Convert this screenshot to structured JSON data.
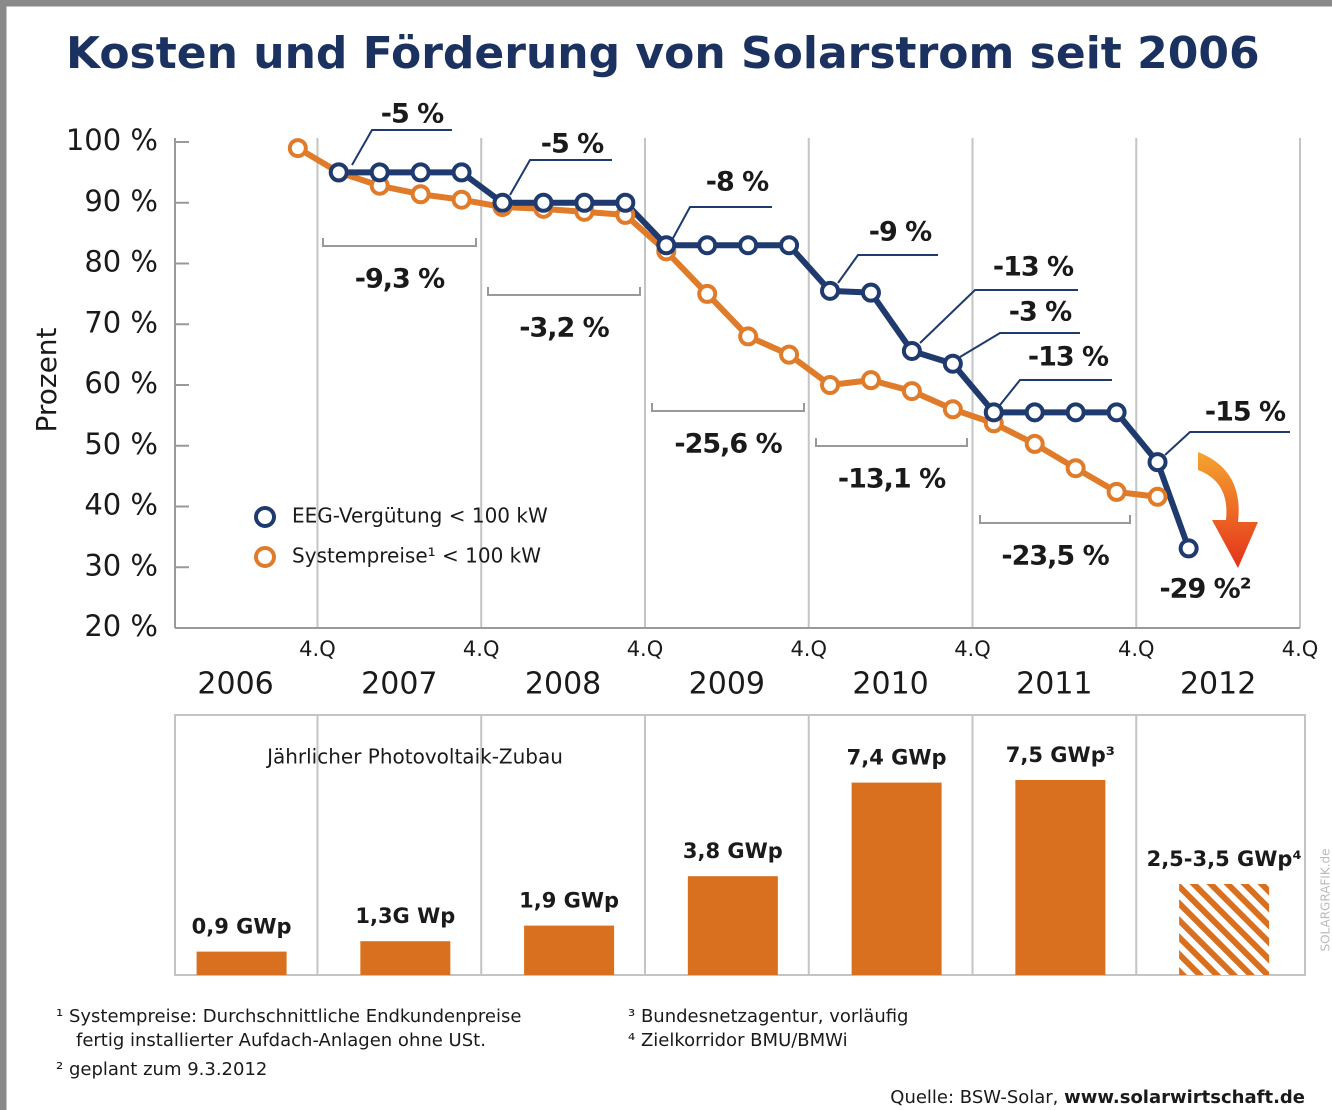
{
  "chart_data": [
    {
      "type": "line",
      "title": "Kosten und Förderung von Solarstrom seit 2006",
      "ylabel": "Prozent",
      "x": [
        2006.88,
        2007.13,
        2007.38,
        2007.63,
        2007.88,
        2008.13,
        2008.38,
        2008.63,
        2008.88,
        2009.13,
        2009.38,
        2009.63,
        2009.88,
        2010.13,
        2010.38,
        2010.63,
        2010.88,
        2011.13,
        2011.38,
        2011.63,
        2011.88,
        2012.13,
        2012.32
      ],
      "xlim": [
        2006.13,
        2013
      ],
      "xticks": [
        {
          "value": 2007,
          "label": "4.Q"
        },
        {
          "value": 2008,
          "label": "4.Q"
        },
        {
          "value": 2009,
          "label": "4.Q"
        },
        {
          "value": 2010,
          "label": "4.Q"
        },
        {
          "value": 2011,
          "label": "4.Q"
        },
        {
          "value": 2012,
          "label": "4.Q"
        },
        {
          "value": 2013,
          "label": "4.Q"
        }
      ],
      "ylim": [
        20,
        100
      ],
      "yticks": [
        {
          "value": 20,
          "label": "20 %"
        },
        {
          "value": 30,
          "label": "30 %"
        },
        {
          "value": 40,
          "label": "40 %"
        },
        {
          "value": 50,
          "label": "50 %"
        },
        {
          "value": 60,
          "label": "60 %"
        },
        {
          "value": 70,
          "label": "70 %"
        },
        {
          "value": 80,
          "label": "80 %"
        },
        {
          "value": 90,
          "label": "90 %"
        },
        {
          "value": 100,
          "label": "100 %"
        }
      ],
      "series": [
        {
          "name": "Systempreise¹ < 100 kW",
          "color": "#e07b2a",
          "values": [
            99,
            95,
            92.8,
            91.4,
            90.5,
            89.3,
            89,
            88.5,
            88,
            82,
            75,
            68,
            65,
            60,
            60.8,
            59,
            56,
            53.7,
            50.3,
            46.3,
            42.4,
            41.6,
            null
          ]
        },
        {
          "name": "EEG-Vergütung < 100 kW",
          "color": "#1e3a6e",
          "values": [
            null,
            95,
            95,
            95,
            95,
            90,
            90,
            90,
            90,
            83,
            83,
            83,
            83,
            75.5,
            75.2,
            65.6,
            63.5,
            55.5,
            55.5,
            55.5,
            55.5,
            47.3,
            33.1
          ]
        }
      ],
      "change_labels": [
        "-5 %",
        "-5 %",
        "-8 %",
        "-9 %",
        "-13 %",
        "-3 %",
        "-13 %",
        "-15 %",
        "-29 %²"
      ],
      "bracket_labels": [
        "-9,3 %",
        "-3,2 %",
        "-25,6 %",
        "-13,1 %",
        "-23,5 %"
      ]
    },
    {
      "type": "bar",
      "title": "Jährlicher Photovoltaik-Zubau",
      "categories": [
        "2006",
        "2007",
        "2008",
        "2009",
        "2010",
        "2011",
        "2012"
      ],
      "values": [
        0.9,
        1.3,
        1.9,
        3.8,
        7.4,
        7.5,
        3.5
      ],
      "value_labels": [
        "0,9 GWp",
        "1,3G Wp",
        "1,9 GWp",
        "3,8 GWp",
        "7,4 GWp",
        "7,5 GWp³",
        "2,5-3,5 GWp⁴"
      ],
      "hatched": [
        false,
        false,
        false,
        false,
        false,
        false,
        true
      ],
      "color": "#d9701f",
      "ylim": [
        0,
        10
      ]
    }
  ],
  "footnotes": [
    "¹ Systempreise: Durchschnittliche Endkundenpreise",
    "fertig installierter Aufdach-Anlagen ohne USt.",
    "² geplant zum 9.3.2012",
    "³ Bundesnetzagentur, vorläufig",
    "⁴ Zielkorridor BMU/BMWi"
  ],
  "source": {
    "text": "Quelle: BSW-Solar,",
    "url": "www.solarwirtschaft.de"
  },
  "credit": "SOLARGRAFIK.de"
}
